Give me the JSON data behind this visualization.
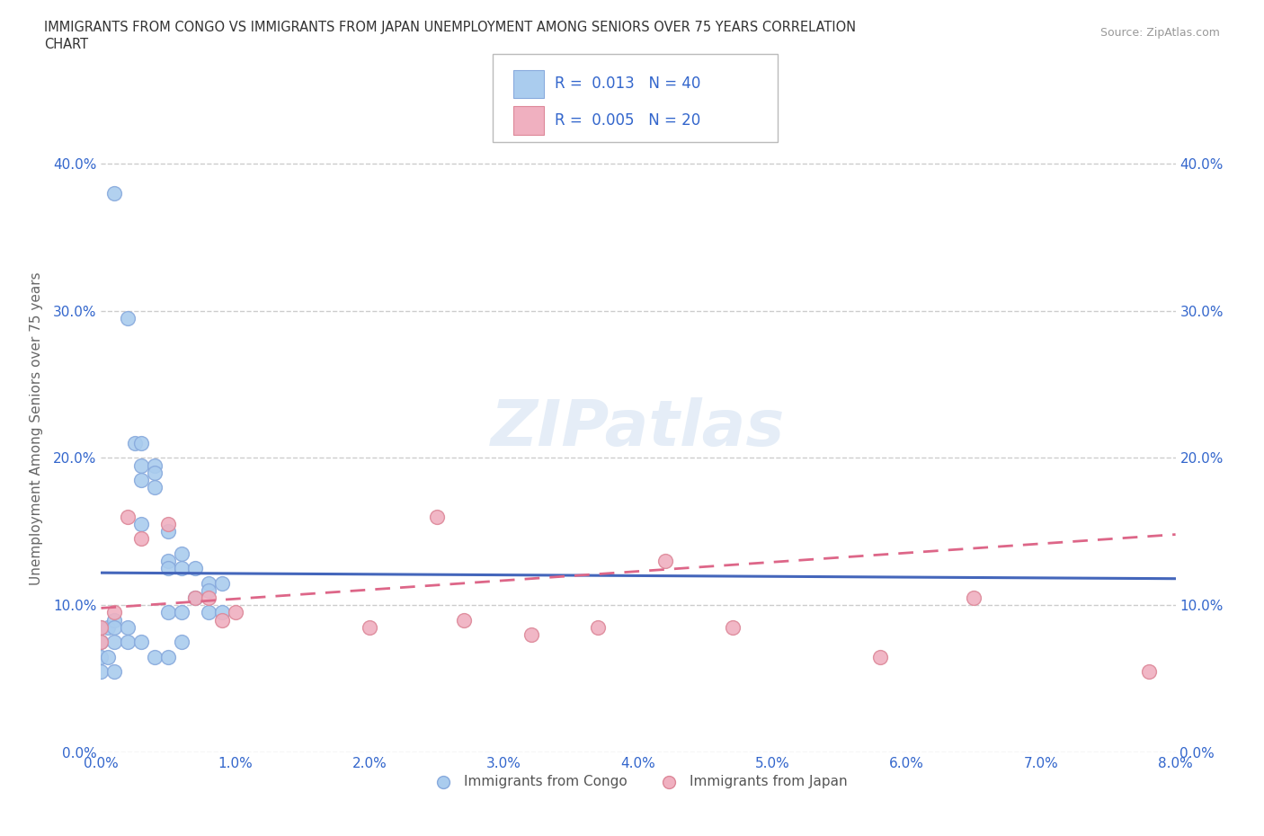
{
  "title_line1": "IMMIGRANTS FROM CONGO VS IMMIGRANTS FROM JAPAN UNEMPLOYMENT AMONG SENIORS OVER 75 YEARS CORRELATION",
  "title_line2": "CHART",
  "source": "Source: ZipAtlas.com",
  "ylabel": "Unemployment Among Seniors over 75 years",
  "xlim": [
    0.0,
    0.08
  ],
  "ylim": [
    0.0,
    0.44
  ],
  "xticks": [
    0.0,
    0.01,
    0.02,
    0.03,
    0.04,
    0.05,
    0.06,
    0.07,
    0.08
  ],
  "xticklabels": [
    "0.0%",
    "1.0%",
    "2.0%",
    "3.0%",
    "4.0%",
    "5.0%",
    "6.0%",
    "7.0%",
    "8.0%"
  ],
  "yticks": [
    0.0,
    0.1,
    0.2,
    0.3,
    0.4
  ],
  "yticklabels": [
    "0.0%",
    "10.0%",
    "20.0%",
    "30.0%",
    "40.0%"
  ],
  "grid_color": "#cccccc",
  "background_color": "#ffffff",
  "watermark_text": "ZIPatlas",
  "congo_color": "#aaccee",
  "congo_edge_color": "#88aadd",
  "japan_color": "#f0b0c0",
  "japan_edge_color": "#dd8899",
  "congo_R": "0.013",
  "congo_N": "40",
  "japan_R": "0.005",
  "japan_N": "20",
  "congo_line_color": "#4466bb",
  "japan_line_color": "#dd6688",
  "tick_color": "#3366cc",
  "label_color": "#666666",
  "congo_x": [
    0.001,
    0.002,
    0.0025,
    0.003,
    0.003,
    0.003,
    0.003,
    0.004,
    0.004,
    0.004,
    0.005,
    0.005,
    0.005,
    0.005,
    0.006,
    0.006,
    0.006,
    0.007,
    0.007,
    0.008,
    0.008,
    0.008,
    0.009,
    0.009,
    0.0,
    0.0,
    0.0,
    0.0,
    0.0005,
    0.0005,
    0.001,
    0.001,
    0.001,
    0.001,
    0.002,
    0.002,
    0.003,
    0.004,
    0.005,
    0.006
  ],
  "congo_y": [
    0.38,
    0.295,
    0.21,
    0.21,
    0.195,
    0.185,
    0.155,
    0.195,
    0.19,
    0.18,
    0.15,
    0.13,
    0.125,
    0.095,
    0.135,
    0.125,
    0.095,
    0.125,
    0.105,
    0.115,
    0.11,
    0.095,
    0.115,
    0.095,
    0.085,
    0.075,
    0.065,
    0.055,
    0.085,
    0.065,
    0.09,
    0.085,
    0.075,
    0.055,
    0.085,
    0.075,
    0.075,
    0.065,
    0.065,
    0.075
  ],
  "japan_x": [
    0.0,
    0.0,
    0.001,
    0.002,
    0.003,
    0.005,
    0.007,
    0.008,
    0.009,
    0.01,
    0.02,
    0.025,
    0.027,
    0.032,
    0.037,
    0.042,
    0.047,
    0.058,
    0.065,
    0.078
  ],
  "japan_y": [
    0.085,
    0.075,
    0.095,
    0.16,
    0.145,
    0.155,
    0.105,
    0.105,
    0.09,
    0.095,
    0.085,
    0.16,
    0.09,
    0.08,
    0.085,
    0.13,
    0.085,
    0.065,
    0.105,
    0.055
  ],
  "congo_trend_x": [
    0.0,
    0.08
  ],
  "congo_trend_y": [
    0.122,
    0.118
  ],
  "japan_trend_x": [
    0.0,
    0.08
  ],
  "japan_trend_y": [
    0.098,
    0.148
  ]
}
